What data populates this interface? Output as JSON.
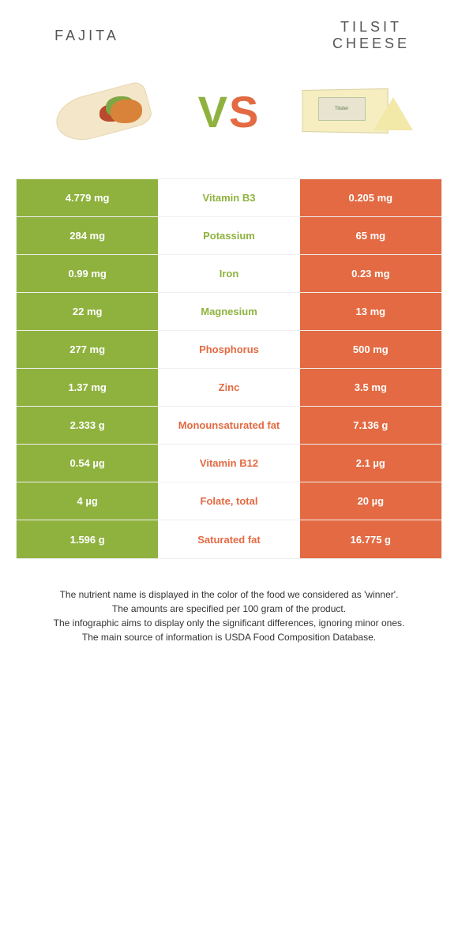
{
  "header": {
    "left_title": "FAJITA",
    "right_title": "TILSIT CHEESE",
    "vs_v": "V",
    "vs_s": "S",
    "cheese_label": "Tilsiter"
  },
  "colors": {
    "left": "#8fb23f",
    "right": "#e36a42",
    "background": "#ffffff",
    "border": "#f0f0f0",
    "text_footer": "#333333"
  },
  "rows": [
    {
      "left": "4.779 mg",
      "mid": "Vitamin B3",
      "right": "0.205 mg",
      "winner": "left"
    },
    {
      "left": "284 mg",
      "mid": "Potassium",
      "right": "65 mg",
      "winner": "left"
    },
    {
      "left": "0.99 mg",
      "mid": "Iron",
      "right": "0.23 mg",
      "winner": "left"
    },
    {
      "left": "22 mg",
      "mid": "Magnesium",
      "right": "13 mg",
      "winner": "left"
    },
    {
      "left": "277 mg",
      "mid": "Phosphorus",
      "right": "500 mg",
      "winner": "right"
    },
    {
      "left": "1.37 mg",
      "mid": "Zinc",
      "right": "3.5 mg",
      "winner": "right"
    },
    {
      "left": "2.333 g",
      "mid": "Monounsaturated fat",
      "right": "7.136 g",
      "winner": "right"
    },
    {
      "left": "0.54 µg",
      "mid": "Vitamin B12",
      "right": "2.1 µg",
      "winner": "right"
    },
    {
      "left": "4 µg",
      "mid": "Folate, total",
      "right": "20 µg",
      "winner": "right"
    },
    {
      "left": "1.596 g",
      "mid": "Saturated fat",
      "right": "16.775 g",
      "winner": "right"
    }
  ],
  "footer": {
    "line1": "The nutrient name is displayed in the color of the food we considered as 'winner'.",
    "line2": "The amounts are specified per 100 gram of the product.",
    "line3": "The infographic aims to display only the significant differences, ignoring minor ones.",
    "line4": "The main source of information is USDA Food Composition Database."
  }
}
